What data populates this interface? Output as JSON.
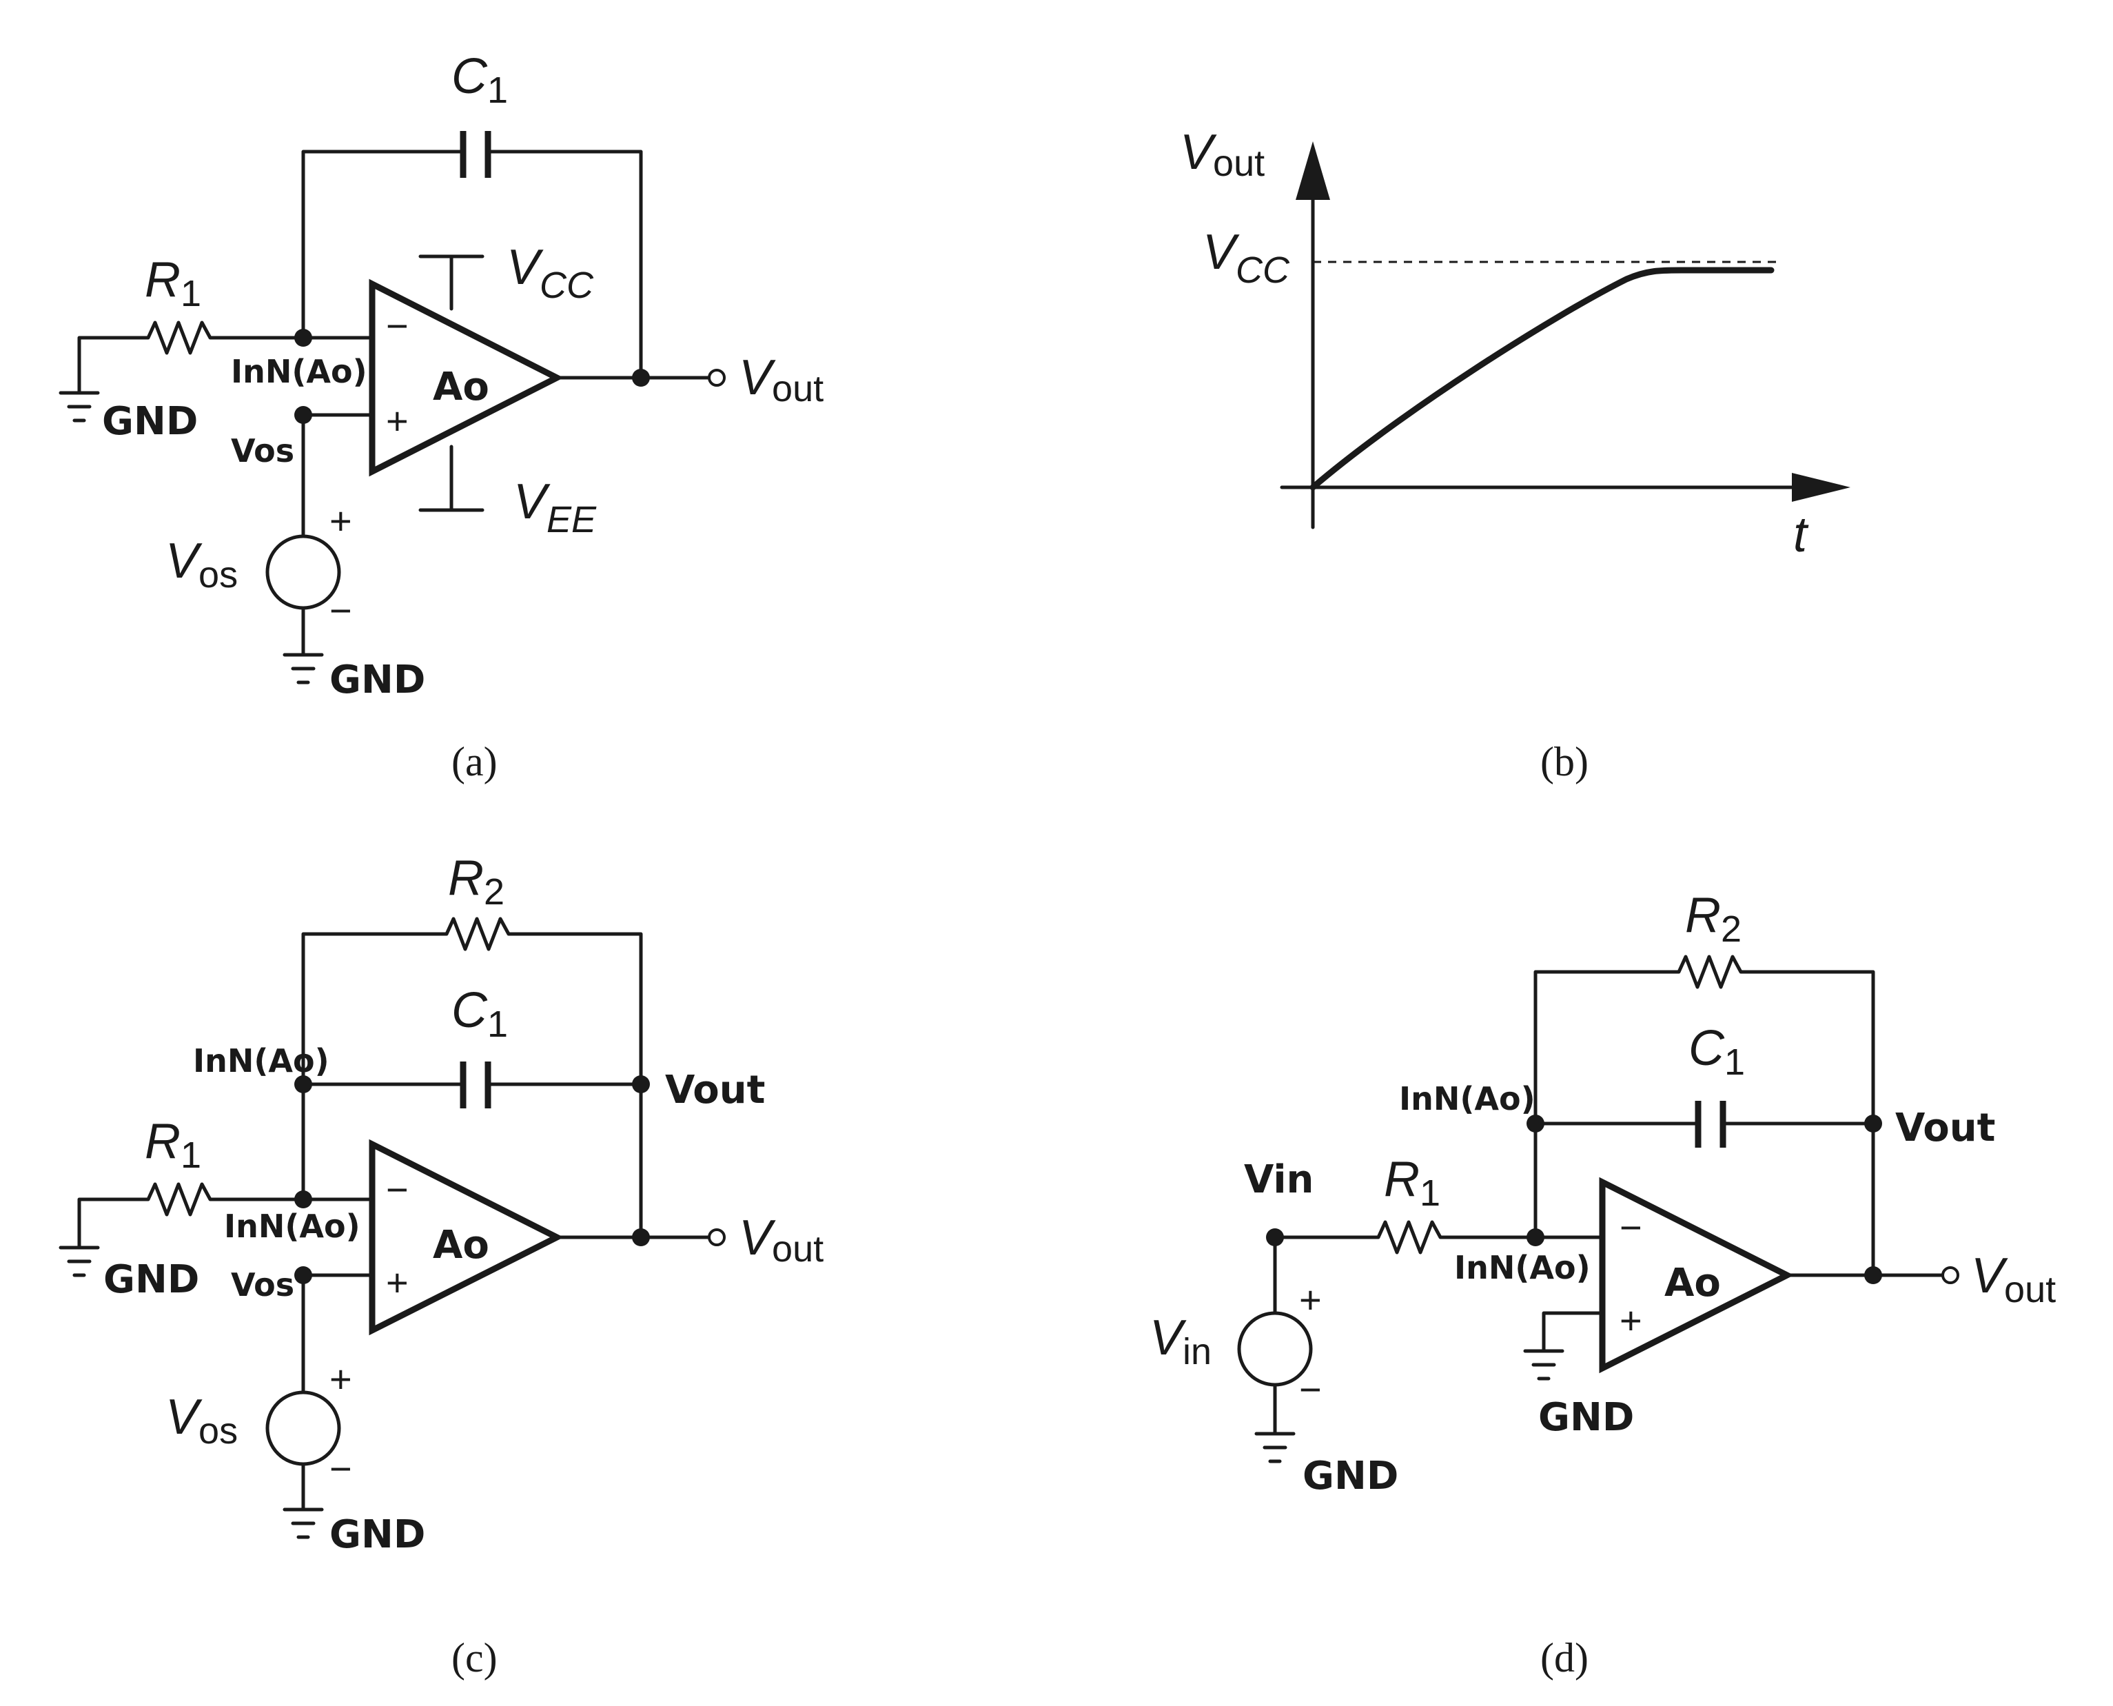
{
  "a": {
    "c1": "C",
    "c1_sub": "1",
    "r1": "R",
    "r1_sub": "1",
    "vcc": "V",
    "vcc_sub": "CC",
    "vee": "V",
    "vee_sub": "EE",
    "vout": "V",
    "vout_sub": "out",
    "vos": "V",
    "vos_sub": "os",
    "opamp": "Ao",
    "inn": "InN(Ao)",
    "vos_node": "Vos",
    "gnd": "GND",
    "minus": "−",
    "plus": "+",
    "caption": "(a)"
  },
  "b": {
    "ylabel": "V",
    "ylabel_sub": "out",
    "vcc": "V",
    "vcc_sub": "CC",
    "xlabel": "t",
    "caption": "(b)"
  },
  "c": {
    "r2": "R",
    "r2_sub": "2",
    "c1": "C",
    "c1_sub": "1",
    "r1": "R",
    "r1_sub": "1",
    "inn_top": "InN(Ao)",
    "vout_node": "Vout",
    "inn": "InN(Ao)",
    "vos_node": "Vos",
    "opamp": "Ao",
    "vout": "V",
    "vout_sub": "out",
    "vos": "V",
    "vos_sub": "os",
    "gnd": "GND",
    "minus": "−",
    "plus": "+",
    "caption": "(c)"
  },
  "d": {
    "r2": "R",
    "r2_sub": "2",
    "c1": "C",
    "c1_sub": "1",
    "inn_top": "InN(Ao)",
    "vout_node": "Vout",
    "vin_node": "Vin",
    "r1": "R",
    "r1_sub": "1",
    "inn": "InN(Ao)",
    "opamp": "Ao",
    "vout": "V",
    "vout_sub": "out",
    "vin": "V",
    "vin_sub": "in",
    "gnd": "GND",
    "minus": "−",
    "plus": "+",
    "caption": "(d)"
  }
}
